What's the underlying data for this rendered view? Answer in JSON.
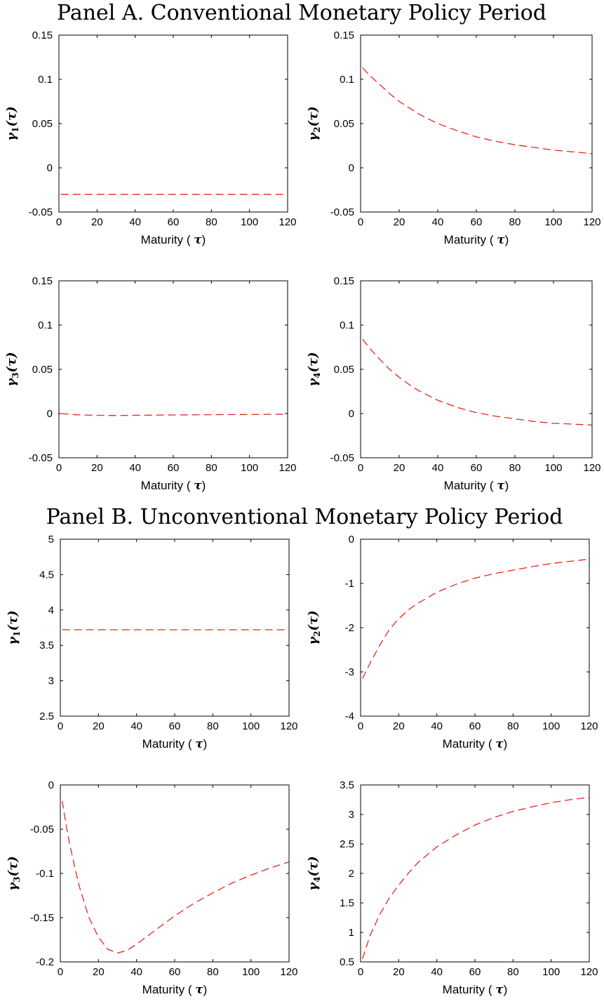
{
  "panels": [
    {
      "title": "Panel A. Conventional Monetary Policy Period"
    },
    {
      "title": "Panel B. Unconventional Monetary Policy Period"
    }
  ],
  "axis_label": {
    "maturity": "Maturity (",
    "tau": "τ",
    "close": ")",
    "gamma": "γ"
  },
  "line_color": "#e8251f",
  "chart_data": [
    {
      "type": "line",
      "panel": 0,
      "ylabel_index": "1",
      "xlim": [
        0,
        120
      ],
      "ylim": [
        -0.05,
        0.15
      ],
      "xticks": [
        0,
        20,
        40,
        60,
        80,
        100,
        120
      ],
      "yticks": [
        -0.05,
        0,
        0.05,
        0.1,
        0.15
      ],
      "ytick_labels": [
        "-0.05",
        "0",
        "0.05",
        "0.1",
        "0.15"
      ],
      "x": [
        1,
        10,
        20,
        30,
        40,
        50,
        60,
        70,
        80,
        90,
        100,
        110,
        120
      ],
      "values": [
        -0.03,
        -0.03,
        -0.03,
        -0.03,
        -0.03,
        -0.03,
        -0.03,
        -0.03,
        -0.03,
        -0.03,
        -0.03,
        -0.03,
        -0.03
      ],
      "xlabel": "Maturity (τ)",
      "ylabel": "γ1(τ)"
    },
    {
      "type": "line",
      "panel": 0,
      "ylabel_index": "2",
      "xlim": [
        0,
        120
      ],
      "ylim": [
        -0.05,
        0.15
      ],
      "xticks": [
        0,
        20,
        40,
        60,
        80,
        100,
        120
      ],
      "yticks": [
        -0.05,
        0,
        0.05,
        0.1,
        0.15
      ],
      "ytick_labels": [
        "-0.05",
        "0",
        "0.05",
        "0.1",
        "0.15"
      ],
      "x": [
        1,
        5,
        10,
        15,
        20,
        25,
        30,
        40,
        50,
        60,
        70,
        80,
        90,
        100,
        110,
        120
      ],
      "values": [
        0.113,
        0.104,
        0.094,
        0.084,
        0.075,
        0.068,
        0.061,
        0.05,
        0.042,
        0.035,
        0.03,
        0.026,
        0.023,
        0.02,
        0.018,
        0.016
      ],
      "xlabel": "Maturity (τ)",
      "ylabel": "γ2(τ)"
    },
    {
      "type": "line",
      "panel": 0,
      "ylabel_index": "3",
      "xlim": [
        0,
        120
      ],
      "ylim": [
        -0.05,
        0.15
      ],
      "xticks": [
        0,
        20,
        40,
        60,
        80,
        100,
        120
      ],
      "yticks": [
        -0.05,
        0,
        0.05,
        0.1,
        0.15
      ],
      "ytick_labels": [
        "-0.05",
        "0",
        "0.05",
        "0.1",
        "0.15"
      ],
      "x": [
        1,
        10,
        20,
        30,
        40,
        50,
        60,
        70,
        80,
        90,
        100,
        110,
        120
      ],
      "values": [
        0.0,
        -0.0015,
        -0.002,
        -0.0022,
        -0.002,
        -0.0018,
        -0.0016,
        -0.0015,
        -0.0013,
        -0.0012,
        -0.0011,
        -0.0009,
        -0.0008
      ],
      "xlabel": "Maturity (τ)",
      "ylabel": "γ3(τ)"
    },
    {
      "type": "line",
      "panel": 0,
      "ylabel_index": "4",
      "xlim": [
        0,
        120
      ],
      "ylim": [
        -0.05,
        0.15
      ],
      "xticks": [
        0,
        20,
        40,
        60,
        80,
        100,
        120
      ],
      "yticks": [
        -0.05,
        0,
        0.05,
        0.1,
        0.15
      ],
      "ytick_labels": [
        "-0.05",
        "0",
        "0.05",
        "0.1",
        "0.15"
      ],
      "x": [
        1,
        5,
        10,
        15,
        20,
        25,
        30,
        40,
        50,
        60,
        70,
        80,
        90,
        100,
        110,
        120
      ],
      "values": [
        0.084,
        0.073,
        0.061,
        0.05,
        0.041,
        0.033,
        0.026,
        0.015,
        0.007,
        0.001,
        -0.003,
        -0.006,
        -0.009,
        -0.011,
        -0.012,
        -0.013
      ],
      "xlabel": "Maturity (τ)",
      "ylabel": "γ4(τ)"
    },
    {
      "type": "line",
      "panel": 1,
      "ylabel_index": "1",
      "xlim": [
        0,
        120
      ],
      "ylim": [
        2.5,
        5
      ],
      "xticks": [
        0,
        20,
        40,
        60,
        80,
        100,
        120
      ],
      "yticks": [
        2.5,
        3,
        3.5,
        4,
        4.5,
        5
      ],
      "ytick_labels": [
        "2.5",
        "3",
        "3.5",
        "4",
        "4.5",
        "5"
      ],
      "x": [
        1,
        10,
        20,
        30,
        40,
        50,
        60,
        70,
        80,
        90,
        100,
        110,
        120
      ],
      "values": [
        3.72,
        3.72,
        3.72,
        3.72,
        3.72,
        3.72,
        3.72,
        3.72,
        3.72,
        3.72,
        3.72,
        3.72,
        3.72
      ],
      "xlabel": "Maturity (τ)",
      "ylabel": "γ1(τ)"
    },
    {
      "type": "line",
      "panel": 1,
      "ylabel_index": "2",
      "xlim": [
        0,
        120
      ],
      "ylim": [
        -4,
        0
      ],
      "xticks": [
        0,
        20,
        40,
        60,
        80,
        100,
        120
      ],
      "yticks": [
        -4,
        -3,
        -2,
        -1,
        0
      ],
      "ytick_labels": [
        "-4",
        "-3",
        "-2",
        "-1",
        "0"
      ],
      "x": [
        1,
        5,
        10,
        15,
        20,
        25,
        30,
        40,
        50,
        60,
        70,
        80,
        90,
        100,
        110,
        120
      ],
      "values": [
        -3.15,
        -2.8,
        -2.4,
        -2.05,
        -1.8,
        -1.6,
        -1.45,
        -1.2,
        -1.02,
        -0.88,
        -0.78,
        -0.7,
        -0.62,
        -0.55,
        -0.5,
        -0.45
      ],
      "xlabel": "Maturity (τ)",
      "ylabel": "γ2(τ)"
    },
    {
      "type": "line",
      "panel": 1,
      "ylabel_index": "3",
      "xlim": [
        0,
        120
      ],
      "ylim": [
        -0.2,
        0
      ],
      "xticks": [
        0,
        20,
        40,
        60,
        80,
        100,
        120
      ],
      "yticks": [
        -0.2,
        -0.15,
        -0.1,
        -0.05,
        0
      ],
      "ytick_labels": [
        "-0.2",
        "-0.15",
        "-0.1",
        "-0.05",
        "0"
      ],
      "x": [
        1,
        3,
        5,
        8,
        10,
        15,
        20,
        25,
        30,
        35,
        40,
        50,
        60,
        70,
        80,
        90,
        100,
        110,
        120
      ],
      "values": [
        -0.018,
        -0.045,
        -0.068,
        -0.097,
        -0.115,
        -0.15,
        -0.172,
        -0.186,
        -0.19,
        -0.187,
        -0.18,
        -0.164,
        -0.148,
        -0.134,
        -0.122,
        -0.111,
        -0.102,
        -0.094,
        -0.087
      ],
      "xlabel": "Maturity (τ)",
      "ylabel": "γ3(τ)"
    },
    {
      "type": "line",
      "panel": 1,
      "ylabel_index": "4",
      "xlim": [
        0,
        120
      ],
      "ylim": [
        0.5,
        3.5
      ],
      "xticks": [
        0,
        20,
        40,
        60,
        80,
        100,
        120
      ],
      "yticks": [
        0.5,
        1,
        1.5,
        2,
        2.5,
        3,
        3.5
      ],
      "ytick_labels": [
        "0.5",
        "1",
        "1.5",
        "2",
        "2.5",
        "3",
        "3.5"
      ],
      "x": [
        1,
        5,
        10,
        15,
        20,
        25,
        30,
        40,
        50,
        60,
        70,
        80,
        90,
        100,
        110,
        120
      ],
      "values": [
        0.55,
        0.95,
        1.3,
        1.58,
        1.8,
        2.0,
        2.18,
        2.45,
        2.65,
        2.82,
        2.95,
        3.05,
        3.13,
        3.2,
        3.25,
        3.29
      ],
      "xlabel": "Maturity (τ)",
      "ylabel": "γ4(τ)"
    }
  ]
}
